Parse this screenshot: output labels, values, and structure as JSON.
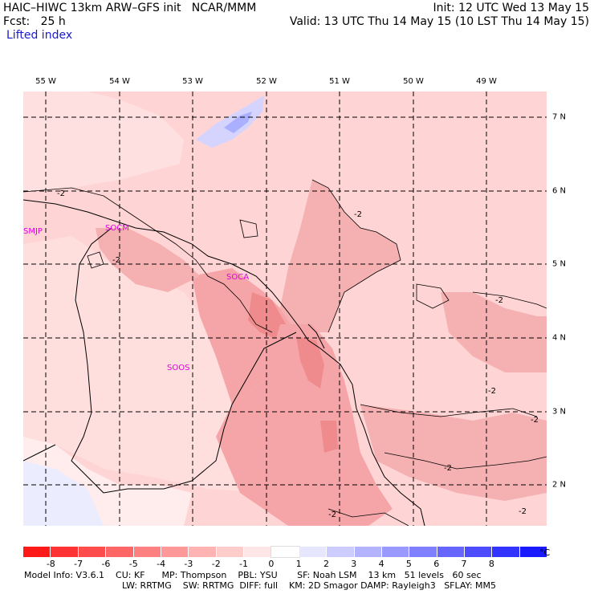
{
  "header": {
    "left_line1": "HAIC–HIWC 13km ARW–GFS init   NCAR/MMM",
    "left_line2": "Fcst:   25 h",
    "right_line1": "Init: 12 UTC Wed 13 May 15",
    "right_line2": "Valid: 13 UTC Thu 14 May 15 (10 LST Thu 14 May 15)",
    "field_title": "Lifted index"
  },
  "map": {
    "longitude_labels": [
      "55 W",
      "54 W",
      "53 W",
      "52 W",
      "51 W",
      "50 W",
      "49 W"
    ],
    "latitude_labels": [
      "7 N",
      "6 N",
      "5 N",
      "4 N",
      "3 N",
      "2 N"
    ],
    "stations": [
      "SMJP",
      "SOCM",
      "SOCA",
      "SOOS"
    ],
    "contour_labels": [
      "-2",
      "-2",
      "-2",
      "-2",
      "-2",
      "-2",
      "-2",
      "-2",
      "-2"
    ],
    "colors": {
      "background_field": "#ffd4d4",
      "neutral": "#ffecec",
      "moderate": "#f5a5a8",
      "strong": "#ef8a8d",
      "stable_light": "#d4d4ff",
      "stable_medium": "#aab0ff"
    }
  },
  "colorbar": {
    "colors": [
      "#ff1a1a",
      "#ff3333",
      "#ff4d4d",
      "#ff6666",
      "#ff8080",
      "#ff9999",
      "#ffb3b3",
      "#ffcccc",
      "#ffe6e6",
      "#ffffff",
      "#e6e6ff",
      "#ccccff",
      "#b3b3ff",
      "#9999ff",
      "#7f7fff",
      "#6666ff",
      "#4d4dff",
      "#3333ff",
      "#1a1aff"
    ],
    "tick_labels": [
      "-8",
      "-7",
      "-6",
      "-5",
      "-4",
      "-3",
      "-2",
      "-1",
      "0",
      "1",
      "2",
      "3",
      "4",
      "5",
      "6",
      "7",
      "8"
    ],
    "unit": "°C"
  },
  "footer": {
    "line1": "Model Info: V3.6.1    CU: KF      MP: Thompson    PBL: YSU       SF: Noah LSM    13 km   51 levels   60 sec",
    "line2": "LW: RRTMG    SW: RRTMG  DIFF: full    KM: 2D Smagor DAMP: Rayleigh3   SFLAY: MM5"
  }
}
